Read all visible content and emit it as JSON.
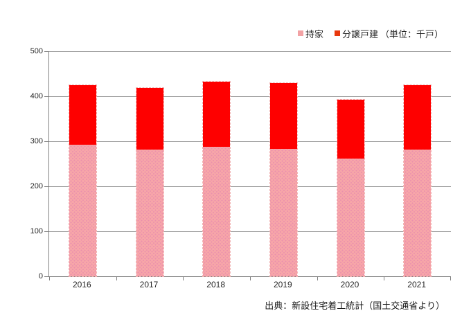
{
  "chart_data": {
    "type": "bar",
    "stacked": true,
    "title": "",
    "categories": [
      "2016",
      "2017",
      "2018",
      "2019",
      "2020",
      "2021"
    ],
    "series": [
      {
        "name": "持家",
        "color": "#f7a6a8",
        "pattern": "dots",
        "dot_color": "#ea8fae",
        "legend_color": "#f2a2a4",
        "values": [
          292,
          282,
          287,
          283,
          261,
          281
        ]
      },
      {
        "name": "分譲戸建",
        "color": "#fe0000",
        "pattern": "solid",
        "legend_color": "#e8380d",
        "values": [
          133,
          136,
          145,
          147,
          131,
          144
        ]
      }
    ],
    "unit_label": "（単位：千戸）",
    "xlabel": "",
    "ylabel": "",
    "ylim": [
      0,
      500
    ],
    "yticks": [
      0,
      100,
      200,
      300,
      400,
      500
    ],
    "grid": "horizontal",
    "legend_position": "top-right",
    "source_note": "出典：新設住宅着工統計（国土交通省より）"
  },
  "colors": {
    "axis": "#7f7f7f",
    "gridline": "#999999",
    "text": "#262626",
    "bar_outline": "#f1b6b6",
    "background": "#ffffff"
  }
}
